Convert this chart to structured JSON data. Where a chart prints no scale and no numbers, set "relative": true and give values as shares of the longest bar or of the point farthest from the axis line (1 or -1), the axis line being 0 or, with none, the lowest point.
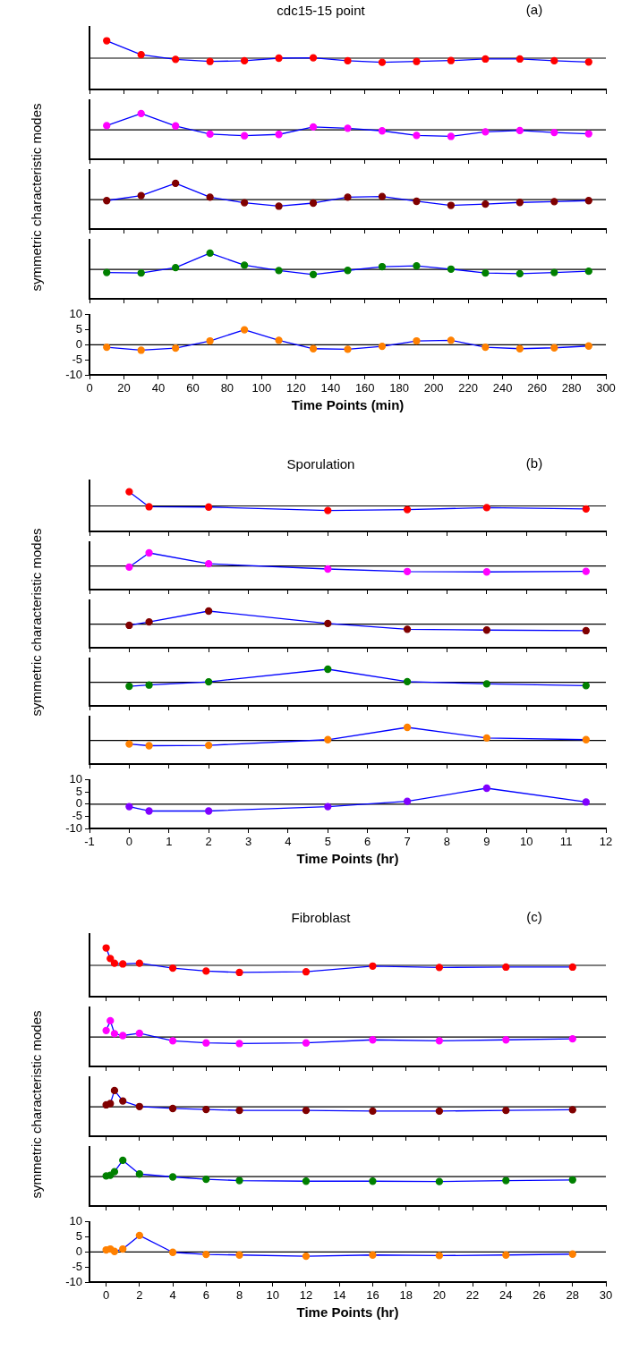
{
  "chart_data": [
    {
      "type": "line",
      "title": "cdc15-15 point",
      "annotations": [
        "(a)"
      ],
      "relative": true,
      "x": [
        10,
        30,
        50,
        70,
        90,
        110,
        130,
        150,
        170,
        190,
        210,
        230,
        250,
        270,
        290
      ],
      "series": [
        {
          "color": "#0000ff",
          "colors": [
            "#ff0000",
            "#ff0000",
            "#ff0000",
            "#ff0000",
            "#ff0000",
            "#ff0000",
            "#ff0000",
            "#ff0000",
            "#ff0000",
            "#ff0000",
            "#ff0000",
            "#ff0000",
            "#ff0000",
            "#ff0000",
            "#ff0000"
          ],
          "values": [
            1,
            0.2,
            -0.07,
            -0.19,
            -0.15,
            0,
            0.02,
            -0.15,
            -0.24,
            -0.19,
            -0.14,
            -0.05,
            -0.05,
            -0.15,
            -0.22
          ]
        }
      ],
      "xlim": [
        0,
        300
      ],
      "xticks": [
        0,
        20,
        40,
        60,
        80,
        100,
        120,
        140,
        160,
        180,
        200,
        220,
        240,
        260,
        280,
        300
      ],
      "tick_labels": false,
      "marker": "circle",
      "ref_lines": [
        {
          "axis": "y",
          "value": 0,
          "color": "#000000"
        }
      ]
    },
    {
      "type": "line",
      "relative": true,
      "x": [
        10,
        30,
        50,
        70,
        90,
        110,
        130,
        150,
        170,
        190,
        210,
        230,
        250,
        270,
        290
      ],
      "series": [
        {
          "color": "#0000ff",
          "colors": [
            "#ff00ff",
            "#ff00ff",
            "#ff00ff",
            "#ff00ff",
            "#ff00ff",
            "#ff00ff",
            "#ff00ff",
            "#ff00ff",
            "#ff00ff",
            "#ff00ff",
            "#ff00ff",
            "#ff00ff",
            "#ff00ff",
            "#ff00ff",
            "#ff00ff"
          ],
          "values": [
            0.26,
            1,
            0.24,
            -0.26,
            -0.36,
            -0.28,
            0.18,
            0.1,
            -0.06,
            -0.34,
            -0.4,
            -0.12,
            -0.04,
            -0.16,
            -0.24
          ]
        }
      ],
      "xlim": [
        0,
        300
      ],
      "xticks": [
        0,
        20,
        40,
        60,
        80,
        100,
        120,
        140,
        160,
        180,
        200,
        220,
        240,
        260,
        280,
        300
      ],
      "tick_labels": false,
      "marker": "circle",
      "ref_lines": [
        {
          "axis": "y",
          "value": 0,
          "color": "#000000"
        }
      ]
    },
    {
      "type": "line",
      "ylabel": "symmetric characteristic modes",
      "relative": true,
      "x": [
        10,
        30,
        50,
        70,
        90,
        110,
        130,
        150,
        170,
        190,
        210,
        230,
        250,
        270,
        290
      ],
      "series": [
        {
          "color": "#0000ff",
          "colors": [
            "#800000",
            "#800000",
            "#800000",
            "#800000",
            "#800000",
            "#800000",
            "#800000",
            "#800000",
            "#800000",
            "#800000",
            "#800000",
            "#800000",
            "#800000",
            "#800000",
            "#800000"
          ],
          "values": [
            -0.06,
            0.25,
            1,
            0.15,
            -0.19,
            -0.4,
            -0.21,
            0.15,
            0.19,
            -0.1,
            -0.35,
            -0.27,
            -0.17,
            -0.12,
            -0.06
          ]
        }
      ],
      "xlim": [
        0,
        300
      ],
      "xticks": [
        0,
        20,
        40,
        60,
        80,
        100,
        120,
        140,
        160,
        180,
        200,
        220,
        240,
        260,
        280,
        300
      ],
      "tick_labels": false,
      "marker": "circle",
      "ref_lines": [
        {
          "axis": "y",
          "value": 0,
          "color": "#000000"
        }
      ]
    },
    {
      "type": "line",
      "relative": true,
      "x": [
        10,
        30,
        50,
        70,
        90,
        110,
        130,
        150,
        170,
        190,
        210,
        230,
        250,
        270,
        290
      ],
      "series": [
        {
          "color": "#0000ff",
          "colors": [
            "#008000",
            "#008000",
            "#008000",
            "#008000",
            "#008000",
            "#008000",
            "#008000",
            "#008000",
            "#008000",
            "#008000",
            "#008000",
            "#008000",
            "#008000",
            "#008000",
            "#008000"
          ],
          "values": [
            -0.19,
            -0.22,
            0.11,
            1,
            0.26,
            -0.07,
            -0.31,
            -0.06,
            0.17,
            0.22,
            0.02,
            -0.22,
            -0.26,
            -0.19,
            -0.11
          ]
        }
      ],
      "xlim": [
        0,
        300
      ],
      "xticks": [
        0,
        20,
        40,
        60,
        80,
        100,
        120,
        140,
        160,
        180,
        200,
        220,
        240,
        260,
        280,
        300
      ],
      "tick_labels": false,
      "marker": "circle",
      "ref_lines": [
        {
          "axis": "y",
          "value": 0,
          "color": "#000000"
        }
      ]
    },
    {
      "type": "line",
      "xlabel": "Time Points (min)",
      "x": [
        10,
        30,
        50,
        70,
        90,
        110,
        130,
        150,
        170,
        190,
        210,
        230,
        250,
        270,
        290
      ],
      "series": [
        {
          "color": "#0000ff",
          "colors": [
            "#ff8000",
            "#ff8000",
            "#ff8000",
            "#ff8000",
            "#ff8000",
            "#ff8000",
            "#ff8000",
            "#ff8000",
            "#ff8000",
            "#ff8000",
            "#ff8000",
            "#ff8000",
            "#ff8000",
            "#ff8000",
            "#ff8000"
          ],
          "values": [
            -0.8,
            -1.8,
            -1.1,
            1.3,
            5.0,
            1.5,
            -1.3,
            -1.5,
            -0.5,
            1.3,
            1.5,
            -0.8,
            -1.3,
            -1.0,
            -0.4
          ]
        }
      ],
      "xlim": [
        0,
        300
      ],
      "xticks": [
        0,
        20,
        40,
        60,
        80,
        100,
        120,
        140,
        160,
        180,
        200,
        220,
        240,
        260,
        280,
        300
      ],
      "ylim": [
        -10,
        10
      ],
      "yticks": [
        -10,
        -5,
        0,
        5,
        10
      ],
      "marker": "circle",
      "ref_lines": [
        {
          "axis": "y",
          "value": 0,
          "color": "#000000"
        }
      ]
    },
    {
      "type": "line",
      "title": "Sporulation",
      "annotations": [
        "(b)"
      ],
      "relative": true,
      "x": [
        0,
        0.5,
        2,
        5,
        7,
        9,
        11.5
      ],
      "series": [
        {
          "color": "#0000ff",
          "colors": [
            "#ff0000",
            "#ff0000",
            "#ff0000",
            "#ff0000",
            "#ff0000",
            "#ff0000",
            "#ff0000"
          ],
          "values": [
            1,
            -0.06,
            -0.08,
            -0.32,
            -0.26,
            -0.12,
            -0.21
          ]
        }
      ],
      "xlim": [
        -1,
        12
      ],
      "xticks": [
        -1,
        0,
        1,
        2,
        3,
        4,
        5,
        6,
        7,
        8,
        9,
        10,
        11,
        12
      ],
      "tick_labels": false,
      "marker": "circle",
      "ref_lines": [
        {
          "axis": "y",
          "value": 0,
          "color": "#000000"
        }
      ]
    },
    {
      "type": "line",
      "relative": true,
      "x": [
        0,
        0.5,
        2,
        5,
        7,
        9,
        11.5
      ],
      "series": [
        {
          "color": "#0000ff",
          "colors": [
            "#ff00ff",
            "#ff00ff",
            "#ff00ff",
            "#ff00ff",
            "#ff00ff",
            "#ff00ff",
            "#ff00ff"
          ],
          "values": [
            -0.08,
            1,
            0.17,
            -0.23,
            -0.42,
            -0.45,
            -0.41
          ]
        }
      ],
      "xlim": [
        -1,
        12
      ],
      "xticks": [
        -1,
        0,
        1,
        2,
        3,
        4,
        5,
        6,
        7,
        8,
        9,
        10,
        11,
        12
      ],
      "tick_labels": false,
      "marker": "circle",
      "ref_lines": [
        {
          "axis": "y",
          "value": 0,
          "color": "#000000"
        }
      ]
    },
    {
      "type": "line",
      "ylabel": "symmetric characteristic modes",
      "relative": true,
      "x": [
        0,
        0.5,
        2,
        5,
        7,
        9,
        11.5
      ],
      "series": [
        {
          "color": "#0000ff",
          "colors": [
            "#800000",
            "#800000",
            "#800000",
            "#800000",
            "#800000",
            "#800000",
            "#800000"
          ],
          "values": [
            -0.09,
            0.17,
            1,
            0.05,
            -0.39,
            -0.45,
            -0.5
          ]
        }
      ],
      "xlim": [
        -1,
        12
      ],
      "xticks": [
        -1,
        0,
        1,
        2,
        3,
        4,
        5,
        6,
        7,
        8,
        9,
        10,
        11,
        12
      ],
      "tick_labels": false,
      "marker": "circle",
      "ref_lines": [
        {
          "axis": "y",
          "value": 0,
          "color": "#000000"
        }
      ]
    },
    {
      "type": "line",
      "relative": true,
      "x": [
        0,
        0.5,
        2,
        5,
        7,
        9,
        11.5
      ],
      "series": [
        {
          "color": "#0000ff",
          "colors": [
            "#008000",
            "#008000",
            "#008000",
            "#008000",
            "#008000",
            "#008000",
            "#008000"
          ],
          "values": [
            -0.3,
            -0.21,
            0.04,
            1,
            0.05,
            -0.12,
            -0.25
          ]
        }
      ],
      "xlim": [
        -1,
        12
      ],
      "xticks": [
        -1,
        0,
        1,
        2,
        3,
        4,
        5,
        6,
        7,
        8,
        9,
        10,
        11,
        12
      ],
      "tick_labels": false,
      "marker": "circle",
      "ref_lines": [
        {
          "axis": "y",
          "value": 0,
          "color": "#000000"
        }
      ]
    },
    {
      "type": "line",
      "relative": true,
      "x": [
        0,
        0.5,
        2,
        5,
        7,
        9,
        11.5
      ],
      "series": [
        {
          "color": "#0000ff",
          "colors": [
            "#ff8000",
            "#ff8000",
            "#ff8000",
            "#ff8000",
            "#ff8000",
            "#ff8000",
            "#ff8000"
          ],
          "values": [
            -0.27,
            -0.4,
            -0.37,
            0.06,
            1,
            0.19,
            0.06
          ]
        }
      ],
      "xlim": [
        -1,
        12
      ],
      "xticks": [
        -1,
        0,
        1,
        2,
        3,
        4,
        5,
        6,
        7,
        8,
        9,
        10,
        11,
        12
      ],
      "tick_labels": false,
      "marker": "circle",
      "ref_lines": [
        {
          "axis": "y",
          "value": 0,
          "color": "#000000"
        }
      ]
    },
    {
      "type": "line",
      "xlabel": "Time Points (hr)",
      "x": [
        0,
        0.5,
        2,
        5,
        7,
        9,
        11.5
      ],
      "series": [
        {
          "color": "#0000ff",
          "colors": [
            "#8000ff",
            "#8000ff",
            "#8000ff",
            "#8000ff",
            "#8000ff",
            "#8000ff",
            "#8000ff"
          ],
          "values": [
            -1.0,
            -2.8,
            -2.8,
            -1.0,
            1.2,
            6.6,
            0.9
          ]
        }
      ],
      "xlim": [
        -1,
        12
      ],
      "xticks": [
        -1,
        0,
        1,
        2,
        3,
        4,
        5,
        6,
        7,
        8,
        9,
        10,
        11,
        12
      ],
      "ylim": [
        -10,
        10
      ],
      "yticks": [
        -10,
        -5,
        0,
        5,
        10
      ],
      "marker": "circle",
      "ref_lines": [
        {
          "axis": "y",
          "value": 0,
          "color": "#000000"
        }
      ]
    },
    {
      "type": "line",
      "title": "Fibroblast",
      "annotations": [
        "(c)"
      ],
      "relative": true,
      "x": [
        0,
        0.25,
        0.5,
        1,
        2,
        4,
        6,
        8,
        12,
        16,
        20,
        24,
        28
      ],
      "series": [
        {
          "color": "#0000ff",
          "colors": [
            "#ff0000",
            "#ff0000",
            "#ff0000",
            "#ff0000",
            "#ff0000",
            "#ff0000",
            "#ff0000",
            "#ff0000",
            "#ff0000",
            "#ff0000",
            "#ff0000",
            "#ff0000",
            "#ff0000"
          ],
          "values": [
            1,
            0.39,
            0.12,
            0.08,
            0.12,
            -0.16,
            -0.33,
            -0.41,
            -0.37,
            -0.04,
            -0.12,
            -0.1,
            -0.1
          ]
        }
      ],
      "xlim": [
        -1,
        30
      ],
      "xticks": [
        0,
        2,
        4,
        6,
        8,
        10,
        12,
        14,
        16,
        18,
        20,
        22,
        24,
        26,
        28,
        30
      ],
      "tick_labels": false,
      "marker": "circle",
      "ref_lines": [
        {
          "axis": "y",
          "value": 0,
          "color": "#000000"
        }
      ]
    },
    {
      "type": "line",
      "relative": true,
      "x": [
        0,
        0.25,
        0.5,
        1,
        2,
        4,
        6,
        8,
        12,
        16,
        20,
        24,
        28
      ],
      "series": [
        {
          "color": "#0000ff",
          "colors": [
            "#ff00ff",
            "#ff00ff",
            "#ff00ff",
            "#ff00ff",
            "#ff00ff",
            "#ff00ff",
            "#ff00ff",
            "#ff00ff",
            "#ff00ff",
            "#ff00ff",
            "#ff00ff",
            "#ff00ff",
            "#ff00ff"
          ],
          "values": [
            0.4,
            1,
            0.21,
            0.09,
            0.23,
            -0.23,
            -0.36,
            -0.4,
            -0.36,
            -0.17,
            -0.23,
            -0.17,
            -0.11
          ]
        }
      ],
      "xlim": [
        -1,
        30
      ],
      "xticks": [
        0,
        2,
        4,
        6,
        8,
        10,
        12,
        14,
        16,
        18,
        20,
        22,
        24,
        26,
        28,
        30
      ],
      "tick_labels": false,
      "marker": "circle",
      "ref_lines": [
        {
          "axis": "y",
          "value": 0,
          "color": "#000000"
        }
      ]
    },
    {
      "type": "line",
      "ylabel": "symmetric characteristic modes",
      "relative": true,
      "x": [
        0,
        0.25,
        0.5,
        1,
        2,
        4,
        6,
        8,
        12,
        16,
        20,
        24,
        28
      ],
      "series": [
        {
          "color": "#0000ff",
          "colors": [
            "#800000",
            "#800000",
            "#800000",
            "#800000",
            "#800000",
            "#800000",
            "#800000",
            "#800000",
            "#800000",
            "#800000",
            "#800000",
            "#800000",
            "#800000"
          ],
          "values": [
            0.12,
            0.2,
            1,
            0.36,
            0.02,
            -0.1,
            -0.16,
            -0.22,
            -0.22,
            -0.26,
            -0.26,
            -0.22,
            -0.18
          ]
        }
      ],
      "xlim": [
        -1,
        30
      ],
      "xticks": [
        0,
        2,
        4,
        6,
        8,
        10,
        12,
        14,
        16,
        18,
        20,
        22,
        24,
        26,
        28,
        30
      ],
      "tick_labels": false,
      "marker": "circle",
      "ref_lines": [
        {
          "axis": "y",
          "value": 0,
          "color": "#000000"
        }
      ]
    },
    {
      "type": "line",
      "relative": true,
      "x": [
        0,
        0.25,
        0.5,
        1,
        2,
        4,
        6,
        8,
        12,
        16,
        20,
        24,
        28
      ],
      "series": [
        {
          "color": "#0000ff",
          "colors": [
            "#008000",
            "#008000",
            "#008000",
            "#008000",
            "#008000",
            "#008000",
            "#008000",
            "#008000",
            "#008000",
            "#008000",
            "#008000",
            "#008000",
            "#008000"
          ],
          "values": [
            0.04,
            0.08,
            0.3,
            1,
            0.16,
            -0.02,
            -0.16,
            -0.24,
            -0.28,
            -0.28,
            -0.3,
            -0.24,
            -0.2
          ]
        }
      ],
      "xlim": [
        -1,
        30
      ],
      "xticks": [
        0,
        2,
        4,
        6,
        8,
        10,
        12,
        14,
        16,
        18,
        20,
        22,
        24,
        26,
        28,
        30
      ],
      "tick_labels": false,
      "marker": "circle",
      "ref_lines": [
        {
          "axis": "y",
          "value": 0,
          "color": "#000000"
        }
      ]
    },
    {
      "type": "line",
      "xlabel": "Time Points (hr)",
      "x": [
        0,
        0.25,
        0.5,
        1,
        2,
        4,
        6,
        8,
        12,
        16,
        20,
        24,
        28
      ],
      "series": [
        {
          "color": "#0000ff",
          "colors": [
            "#ff8000",
            "#ff8000",
            "#ff8000",
            "#ff8000",
            "#ff8000",
            "#ff8000",
            "#ff8000",
            "#ff8000",
            "#ff8000",
            "#ff8000",
            "#ff8000",
            "#ff8000",
            "#ff8000"
          ],
          "values": [
            0.7,
            1.0,
            0.2,
            1.0,
            5.5,
            -0.1,
            -0.8,
            -1.0,
            -1.4,
            -1.0,
            -1.2,
            -1.0,
            -0.7
          ]
        }
      ],
      "xlim": [
        -1,
        30
      ],
      "xticks": [
        0,
        2,
        4,
        6,
        8,
        10,
        12,
        14,
        16,
        18,
        20,
        22,
        24,
        26,
        28,
        30
      ],
      "ylim": [
        -10,
        10
      ],
      "yticks": [
        -10,
        -5,
        0,
        5,
        10
      ],
      "marker": "circle",
      "ref_lines": [
        {
          "axis": "y",
          "value": 0,
          "color": "#000000"
        }
      ]
    }
  ]
}
